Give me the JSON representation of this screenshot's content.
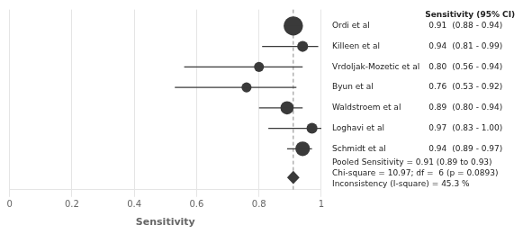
{
  "chart_data": {
    "type": "forest",
    "header": "Sensitivity (95% CI)",
    "xlabel": "Sensitivity",
    "categories": [
      "Ordi et al",
      "Killeen et al",
      "Vrdoljak-Mozetic et al",
      "Byun et al",
      "Waldstroem et al",
      "Loghavi et al",
      "Schmidt et al"
    ],
    "values": [
      0.91,
      0.94,
      0.8,
      0.76,
      0.89,
      0.97,
      0.94
    ],
    "value_labels": [
      "0.91",
      "0.94",
      "0.80",
      "0.76",
      "0.89",
      "0.97",
      "0.94"
    ],
    "ci_lo": [
      0.88,
      0.81,
      0.56,
      0.53,
      0.8,
      0.83,
      0.89
    ],
    "ci_hi": [
      0.94,
      0.99,
      0.94,
      0.92,
      0.94,
      1.0,
      0.97
    ],
    "ci_labels": [
      "(0.88 - 0.94)",
      "(0.81 - 0.99)",
      "(0.56 - 0.94)",
      "(0.53 - 0.92)",
      "(0.80 - 0.94)",
      "(0.83 - 1.00)",
      "(0.89 - 0.97)"
    ],
    "weights": [
      18,
      5,
      4,
      4,
      8,
      5,
      10
    ],
    "pooled": {
      "value": 0.91,
      "ci_lo": 0.89,
      "ci_hi": 0.93
    },
    "annotations": [
      "Pooled Sensitivity = 0.91 (0.89 to 0.93)",
      "Chi-square = 10.97; df =  6 (p = 0.0893)",
      "Inconsistency (I-square) = 45.3 %"
    ],
    "xlim": [
      0,
      1.0
    ],
    "xticks": [
      0,
      0.2,
      0.4,
      0.6,
      0.8,
      1
    ],
    "grid": true,
    "tick_labels": "x",
    "color": "#3a3a3a"
  }
}
